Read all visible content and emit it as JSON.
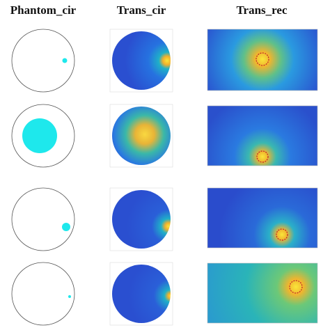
{
  "columns": [
    "Phantom_cir",
    "Trans_cir",
    "Trans_rec"
  ]
}
